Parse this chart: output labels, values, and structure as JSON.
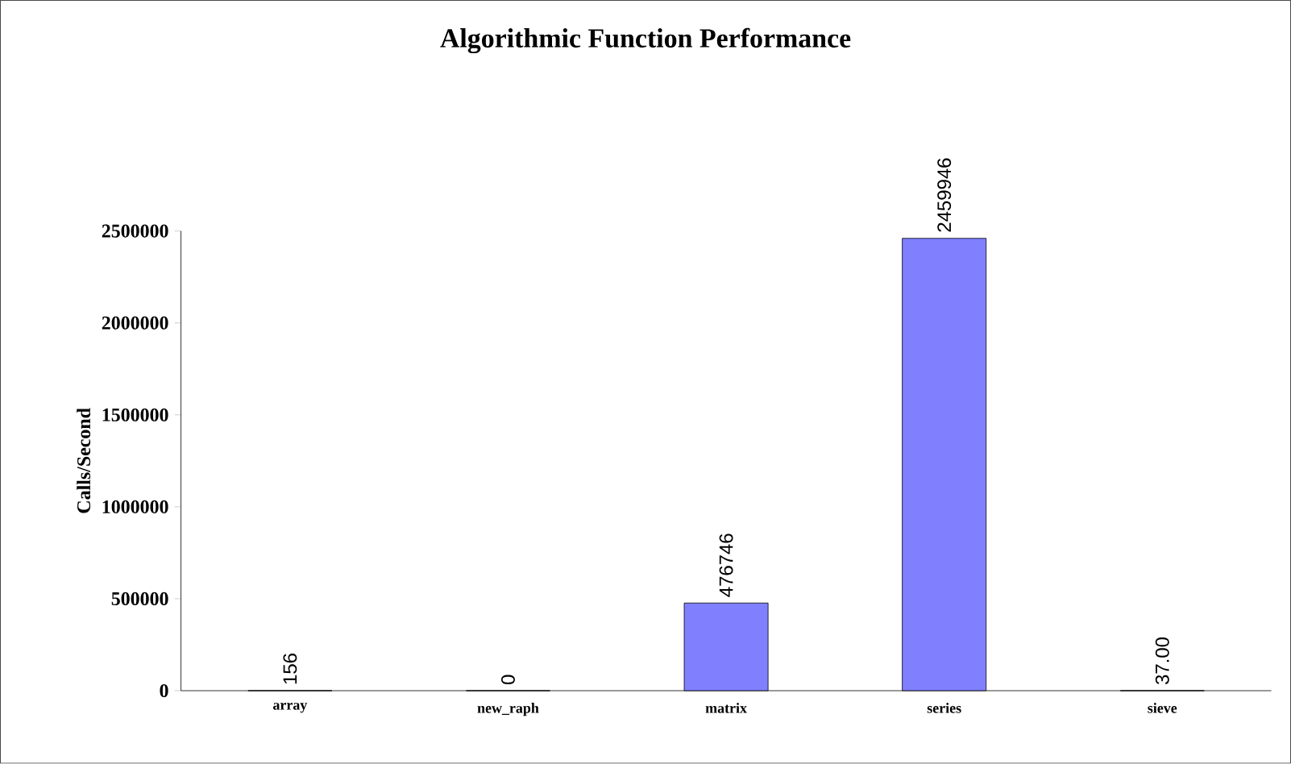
{
  "chart_data": {
    "type": "bar",
    "title": "Algorithmic Function Performance",
    "ylabel": "Calls/Second",
    "categories": [
      "array",
      "new_raph",
      "matrix",
      "series",
      "sieve"
    ],
    "values": [
      156,
      0,
      476746,
      2459946,
      37
    ],
    "value_labels": [
      "156",
      "0",
      "476746",
      "2459946",
      "37.00"
    ],
    "color": "#8080ff",
    "ylim": [
      0,
      2500000
    ],
    "yticks": [
      0,
      500000,
      1000000,
      1500000,
      2000000,
      2500000
    ],
    "grid": false
  }
}
